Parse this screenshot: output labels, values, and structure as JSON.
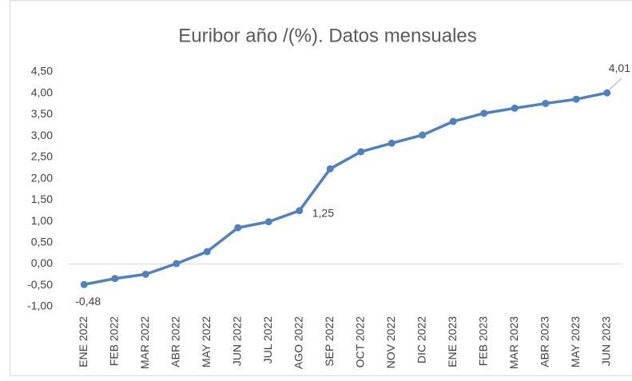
{
  "chart_data": {
    "type": "line",
    "title": "Euribor año /(%). Datos mensuales",
    "categories": [
      "ENE 2022",
      "FEB 2022",
      "MAR 2022",
      "ABR 2022",
      "MAY 2022",
      "JUN 2022",
      "JUL 2022",
      "AGO 2022",
      "SEP 2022",
      "OCT 2022",
      "NOV 2022",
      "DIC 2022",
      "ENE 2023",
      "FEB 2023",
      "MAR 2023",
      "ABR 2023",
      "MAY 2023",
      "JUN 2023"
    ],
    "series": [
      {
        "name": "Euribor",
        "color": "#4f81bd",
        "values": [
          -0.48,
          -0.34,
          -0.24,
          0.01,
          0.29,
          0.85,
          0.99,
          1.25,
          2.23,
          2.63,
          2.83,
          3.02,
          3.34,
          3.53,
          3.65,
          3.76,
          3.86,
          4.01
        ],
        "value_labels": [
          "-0,48",
          null,
          null,
          null,
          null,
          null,
          null,
          "1,25",
          null,
          null,
          null,
          null,
          null,
          null,
          null,
          null,
          null,
          "4,01"
        ]
      }
    ],
    "ylim": [
      -1,
      4.5
    ],
    "yticks": [
      {
        "value": -1,
        "label": "-1,00"
      },
      {
        "value": -0.5,
        "label": "-0,50"
      },
      {
        "value": 0,
        "label": "0,00"
      },
      {
        "value": 0.5,
        "label": "0,50"
      },
      {
        "value": 1,
        "label": "1,00"
      },
      {
        "value": 1.5,
        "label": "1,50"
      },
      {
        "value": 2,
        "label": "2,00"
      },
      {
        "value": 2.5,
        "label": "2,50"
      },
      {
        "value": 3,
        "label": "3,00"
      },
      {
        "value": 3.5,
        "label": "3,50"
      },
      {
        "value": 4,
        "label": "4,00"
      },
      {
        "value": 4.5,
        "label": "4,50"
      }
    ],
    "grid": false
  }
}
